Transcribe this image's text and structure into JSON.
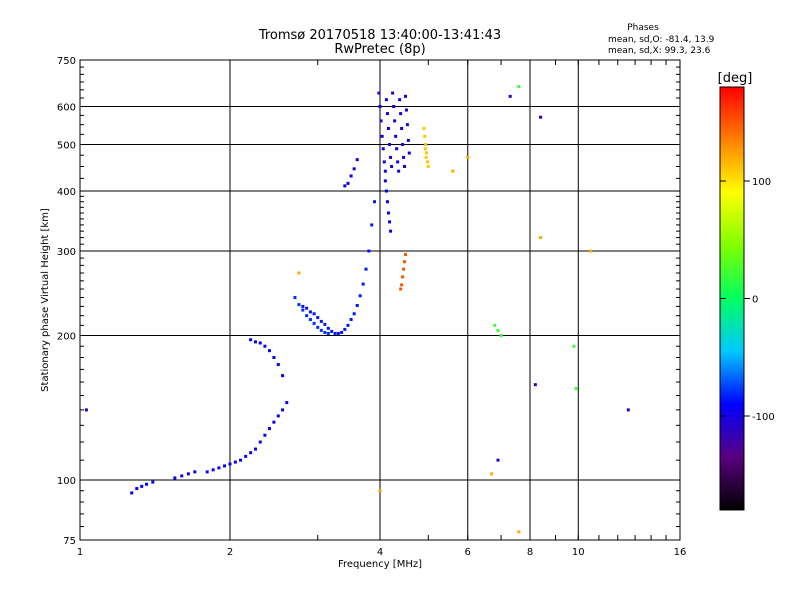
{
  "chart_data": {
    "type": "scatter",
    "title": "Tromsø 20170518 13:40:00-13:41:43",
    "subtitle": "RwPretec (8p)",
    "xlabel": "Frequency [MHz]",
    "ylabel": "Stationary phase Virtual Height [km]",
    "x_scale": "log2",
    "y_scale": "log",
    "xlim": [
      1,
      16
    ],
    "ylim": [
      75,
      750
    ],
    "x_ticks": [
      1,
      2,
      4,
      6,
      8,
      10,
      16
    ],
    "y_ticks": [
      75,
      100,
      200,
      300,
      400,
      500,
      600,
      750
    ],
    "x_gridlines": [
      2,
      4,
      6,
      8,
      10
    ],
    "y_gridlines": [
      100,
      200,
      300,
      400,
      500,
      600
    ],
    "grid": true,
    "colorbar": {
      "label": "[deg]",
      "ticks": [
        100,
        0,
        -100
      ],
      "range": [
        -180,
        180
      ],
      "colormap": "rainbow",
      "colors": [
        "#000000",
        "#5a0080",
        "#0000ff",
        "#00c8ff",
        "#00ff60",
        "#80ff00",
        "#ffff00",
        "#ff8000",
        "#ff0000"
      ]
    },
    "stats": {
      "title": "Phases",
      "line_o": "mean, sd,O:  -81.4, 13.9",
      "line_x": "mean, sd,X:  99.3, 23.6"
    },
    "traces": [
      {
        "phase": -90,
        "points": [
          [
            1.27,
            94
          ],
          [
            1.3,
            96
          ],
          [
            1.33,
            97
          ],
          [
            1.36,
            98
          ],
          [
            1.4,
            99
          ]
        ]
      },
      {
        "phase": -95,
        "points": [
          [
            1.55,
            101
          ],
          [
            1.6,
            102
          ],
          [
            1.65,
            103
          ],
          [
            1.7,
            104
          ],
          [
            1.8,
            104
          ],
          [
            1.85,
            105
          ],
          [
            1.9,
            106
          ],
          [
            1.95,
            107
          ],
          [
            2.0,
            108
          ],
          [
            2.05,
            109
          ],
          [
            2.1,
            110
          ],
          [
            2.15,
            112
          ],
          [
            2.2,
            114
          ],
          [
            2.25,
            116
          ],
          [
            2.3,
            120
          ],
          [
            2.35,
            124
          ],
          [
            2.4,
            128
          ],
          [
            2.45,
            132
          ],
          [
            2.5,
            136
          ],
          [
            2.55,
            140
          ],
          [
            2.6,
            145
          ]
        ]
      },
      {
        "phase": -90,
        "points": [
          [
            2.2,
            196
          ],
          [
            2.25,
            194
          ],
          [
            2.3,
            193
          ],
          [
            2.35,
            190
          ],
          [
            2.4,
            186
          ],
          [
            2.45,
            180
          ],
          [
            2.5,
            174
          ],
          [
            2.55,
            165
          ]
        ]
      },
      {
        "phase": -85,
        "points": [
          [
            2.8,
            230
          ],
          [
            2.85,
            228
          ],
          [
            2.9,
            224
          ],
          [
            2.95,
            222
          ],
          [
            3.0,
            218
          ],
          [
            3.05,
            214
          ],
          [
            3.1,
            211
          ],
          [
            3.15,
            207
          ],
          [
            3.2,
            204
          ],
          [
            3.25,
            202
          ],
          [
            3.3,
            202
          ],
          [
            3.35,
            203
          ],
          [
            3.4,
            206
          ],
          [
            3.45,
            210
          ],
          [
            3.5,
            216
          ],
          [
            3.55,
            222
          ],
          [
            3.6,
            231
          ],
          [
            3.65,
            242
          ],
          [
            3.7,
            256
          ],
          [
            3.75,
            275
          ],
          [
            3.8,
            300
          ],
          [
            3.85,
            340
          ],
          [
            3.9,
            380
          ]
        ]
      },
      {
        "phase": -80,
        "points": [
          [
            2.7,
            240
          ],
          [
            2.75,
            232
          ],
          [
            2.8,
            226
          ],
          [
            2.85,
            220
          ],
          [
            2.9,
            216
          ],
          [
            2.95,
            212
          ],
          [
            3.0,
            208
          ],
          [
            3.05,
            205
          ],
          [
            3.1,
            203
          ],
          [
            3.15,
            202
          ]
        ]
      },
      {
        "phase": -95,
        "points": [
          [
            3.4,
            410
          ],
          [
            3.45,
            415
          ],
          [
            3.5,
            430
          ],
          [
            3.55,
            445
          ],
          [
            3.6,
            465
          ]
        ]
      },
      {
        "phase": -100,
        "points": [
          [
            3.98,
            640
          ],
          [
            4.0,
            600
          ],
          [
            4.02,
            560
          ],
          [
            4.04,
            520
          ],
          [
            4.06,
            490
          ],
          [
            4.08,
            460
          ],
          [
            4.1,
            440
          ],
          [
            4.12,
            620
          ],
          [
            4.14,
            580
          ],
          [
            4.16,
            540
          ],
          [
            4.18,
            500
          ],
          [
            4.2,
            470
          ],
          [
            4.22,
            450
          ],
          [
            4.24,
            640
          ],
          [
            4.26,
            600
          ],
          [
            4.28,
            560
          ],
          [
            4.3,
            520
          ],
          [
            4.32,
            490
          ],
          [
            4.34,
            460
          ],
          [
            4.36,
            440
          ],
          [
            4.38,
            620
          ],
          [
            4.4,
            580
          ],
          [
            4.42,
            540
          ],
          [
            4.44,
            500
          ],
          [
            4.46,
            470
          ],
          [
            4.48,
            450
          ],
          [
            4.5,
            630
          ],
          [
            4.52,
            590
          ],
          [
            4.54,
            550
          ],
          [
            4.56,
            510
          ],
          [
            4.58,
            480
          ]
        ]
      },
      {
        "phase": -95,
        "points": [
          [
            4.1,
            420
          ],
          [
            4.12,
            400
          ],
          [
            4.14,
            380
          ],
          [
            4.16,
            360
          ],
          [
            4.18,
            345
          ],
          [
            4.2,
            330
          ]
        ]
      },
      {
        "phase": 110,
        "points": [
          [
            4.9,
            540
          ],
          [
            4.92,
            520
          ],
          [
            4.94,
            500
          ],
          [
            4.96,
            480
          ],
          [
            4.98,
            460
          ],
          [
            5.0,
            450
          ],
          [
            4.95,
            470
          ],
          [
            4.93,
            490
          ]
        ]
      },
      {
        "phase": 150,
        "points": [
          [
            4.5,
            295
          ],
          [
            4.48,
            285
          ],
          [
            4.46,
            275
          ],
          [
            4.44,
            265
          ],
          [
            4.42,
            255
          ],
          [
            4.4,
            250
          ]
        ]
      },
      {
        "phase": 20,
        "points": [
          [
            6.8,
            210
          ],
          [
            6.9,
            205
          ],
          [
            7.0,
            200
          ],
          [
            7.6,
            660
          ],
          [
            9.8,
            190
          ],
          [
            9.9,
            155
          ]
        ]
      },
      {
        "phase": -110,
        "points": [
          [
            1.03,
            140
          ],
          [
            8.2,
            158
          ],
          [
            8.4,
            570
          ],
          [
            7.3,
            630
          ],
          [
            12.6,
            140
          ],
          [
            6.9,
            110
          ]
        ]
      },
      {
        "phase": 120,
        "points": [
          [
            2.75,
            270
          ],
          [
            5.6,
            440
          ],
          [
            6.0,
            470
          ],
          [
            4.0,
            95
          ],
          [
            7.6,
            78
          ],
          [
            6.7,
            103
          ],
          [
            10.6,
            300
          ],
          [
            8.4,
            320
          ]
        ]
      }
    ]
  }
}
